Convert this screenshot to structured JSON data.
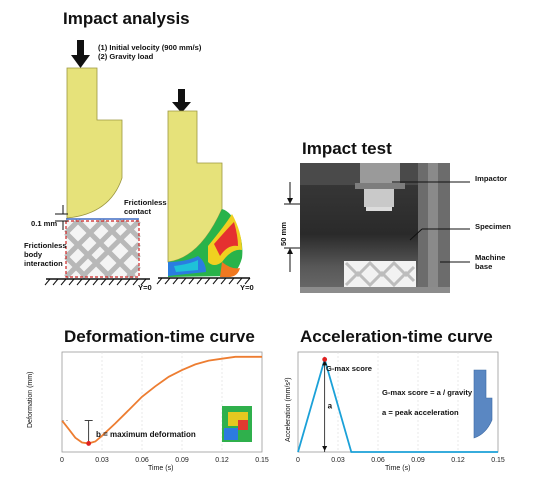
{
  "impact_analysis": {
    "title": "Impact analysis",
    "loads": [
      "(1) Initial velocity (900 mm/s)",
      "(2) Gravity load"
    ],
    "contact_label": [
      "Frictionless",
      "contact"
    ],
    "gap_label": "0.1 mm",
    "body_label": [
      "Frictionless",
      "body",
      "interaction"
    ],
    "ground_label": "Y=0"
  },
  "impact_test": {
    "title": "Impact test",
    "height_label": "50 mm",
    "labels": {
      "impactor": "Impactor",
      "specimen": "Specimen",
      "machine_base": [
        "Machine",
        "base"
      ]
    }
  },
  "deformation_chart": {
    "title": "Deformation-time curve",
    "annotation": "b = maximum deformation",
    "marker_label": "b",
    "chart_data": {
      "type": "line",
      "title": "Deformation-time curve",
      "xlabel": "Time (s)",
      "ylabel": "Deformation (mm)",
      "xlim": [
        0,
        0.15
      ],
      "x_ticks": [
        "0",
        "0.03",
        "0.06",
        "0.09",
        "0.12",
        "0.15"
      ],
      "grid": true,
      "color": "#ed7d31",
      "marker_color": "#e02020",
      "series": [
        {
          "x": [
            0,
            0.005,
            0.01,
            0.015,
            0.02,
            0.025,
            0.03,
            0.04,
            0.05,
            0.06,
            0.07,
            0.08,
            0.09,
            0.1,
            0.11,
            0.12,
            0.13,
            0.14,
            0.15
          ],
          "y": [
            0.33,
            0.24,
            0.15,
            0.1,
            0.09,
            0.11,
            0.17,
            0.3,
            0.44,
            0.58,
            0.69,
            0.79,
            0.86,
            0.92,
            0.96,
            0.98,
            1.0,
            1.0,
            1.0
          ]
        }
      ],
      "ylim": [
        0,
        1.05
      ],
      "marker": {
        "x": 0.02,
        "y": 0.09
      }
    }
  },
  "acceleration_chart": {
    "title": "Acceleration-time curve",
    "peak_label": "G-max score",
    "formula": "G-max score = a / gravity",
    "definition": "a = peak acceleration",
    "marker_label": "a",
    "chart_data": {
      "type": "line",
      "title": "Acceleration-time curve",
      "xlabel": "Time (s)",
      "ylabel": "Acceleration (mm/s²)",
      "xlim": [
        0,
        0.15
      ],
      "x_ticks": [
        "0",
        "0.03",
        "0.06",
        "0.09",
        "0.12",
        "0.15"
      ],
      "grid": true,
      "color": "#1ba1d8",
      "marker_color": "#e02020",
      "series": [
        {
          "x": [
            0,
            0.02,
            0.04,
            0.15
          ],
          "y": [
            0,
            1.0,
            0,
            0
          ]
        }
      ],
      "ylim": [
        0,
        1.08
      ],
      "marker": {
        "x": 0.02,
        "y": 1.0
      }
    }
  },
  "colors": {
    "impactor_fill": "#e6e27a",
    "lattice": "#b5b5b5",
    "dashed_box": "#cc2222",
    "arrow": "#111111"
  }
}
